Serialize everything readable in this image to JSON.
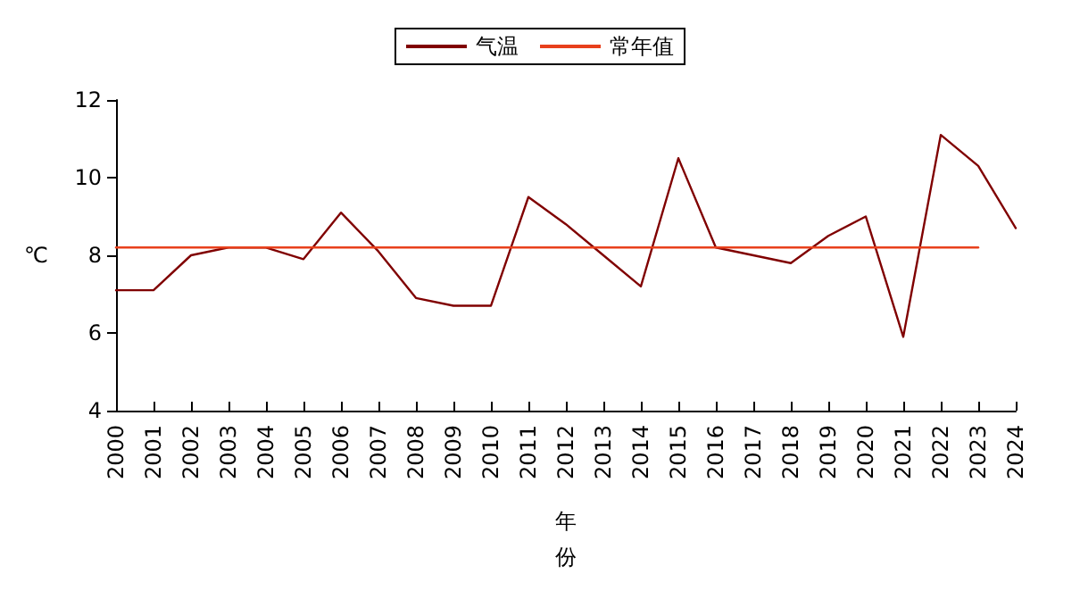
{
  "chart_data": {
    "type": "line",
    "xlabel": "年份",
    "ylabel": "℃",
    "categories": [
      "2000",
      "2001",
      "2002",
      "2003",
      "2004",
      "2005",
      "2006",
      "2007",
      "2008",
      "2009",
      "2010",
      "2011",
      "2012",
      "2013",
      "2014",
      "2015",
      "2016",
      "2017",
      "2018",
      "2019",
      "2020",
      "2021",
      "2022",
      "2023",
      "2024"
    ],
    "series": [
      {
        "name": "气温",
        "color": "#800000",
        "values": [
          7.1,
          7.1,
          8.0,
          8.2,
          8.2,
          7.9,
          9.1,
          8.1,
          6.9,
          6.7,
          6.7,
          9.5,
          8.8,
          8.0,
          7.2,
          10.5,
          8.2,
          8.0,
          7.8,
          8.5,
          9.0,
          5.9,
          11.1,
          10.3,
          8.7
        ]
      },
      {
        "name": "常年值",
        "color": "#e8401c",
        "values": [
          8.2,
          8.2,
          8.2,
          8.2,
          8.2,
          8.2,
          8.2,
          8.2,
          8.2,
          8.2,
          8.2,
          8.2,
          8.2,
          8.2,
          8.2,
          8.2,
          8.2,
          8.2,
          8.2,
          8.2,
          8.2,
          8.2,
          8.2,
          8.2,
          null
        ]
      }
    ],
    "ylim": [
      4,
      12
    ],
    "yticks": [
      4,
      6,
      8,
      10,
      12
    ],
    "grid": false,
    "legend": "top",
    "marker": "none",
    "line_style": "solid"
  }
}
